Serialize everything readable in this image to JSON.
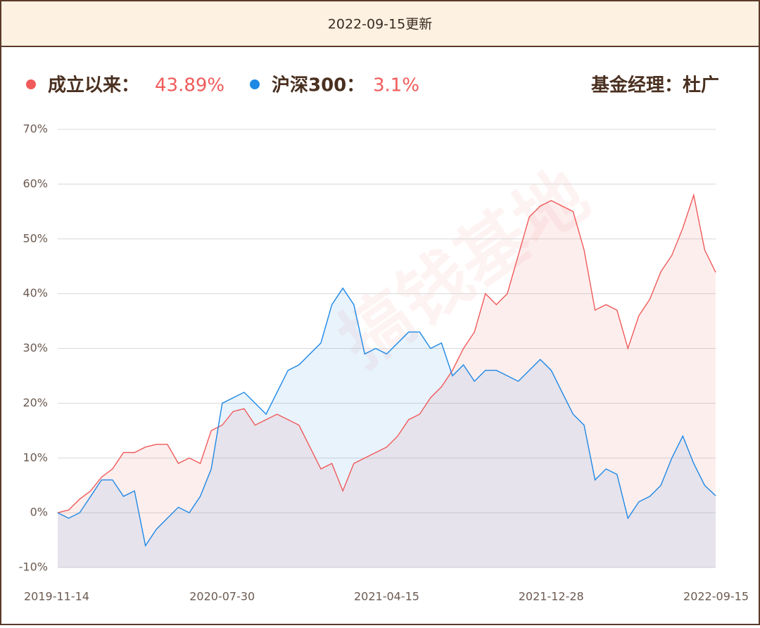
{
  "header": {
    "title": "2022-09-15更新"
  },
  "manager": "基金经理：杜广",
  "watermark": "搞钱基地",
  "chart_data": {
    "type": "line",
    "categories": [
      "2019-11-14",
      null,
      null,
      null,
      null,
      null,
      null,
      null,
      null,
      null,
      null,
      null,
      null,
      null,
      null,
      "2020-07-30",
      null,
      null,
      null,
      null,
      null,
      null,
      null,
      null,
      null,
      null,
      null,
      null,
      null,
      null,
      "2021-04-15",
      null,
      null,
      null,
      null,
      null,
      null,
      null,
      null,
      null,
      null,
      null,
      null,
      null,
      null,
      "2021-12-28",
      null,
      null,
      null,
      null,
      null,
      null,
      null,
      null,
      null,
      null,
      null,
      null,
      null,
      null,
      "2022-09-15"
    ],
    "series": [
      {
        "name": "成立以来：",
        "color": "#f05a5a",
        "total": {
          "value": 43.89,
          "label": "43.89%"
        },
        "values": [
          0,
          0.5,
          2.5,
          4,
          6.5,
          8,
          11,
          11,
          12,
          12.5,
          12.5,
          9,
          10,
          9,
          15,
          16,
          18.5,
          19,
          16,
          17,
          18,
          17,
          16,
          12,
          8,
          9,
          4,
          9,
          10,
          11,
          12,
          14,
          17,
          18,
          21,
          23,
          26,
          30,
          33,
          40,
          38,
          40,
          47,
          54,
          56,
          57,
          56,
          55,
          48,
          37,
          38,
          37,
          30,
          36,
          39,
          44,
          47,
          52,
          58,
          48,
          43.89
        ]
      },
      {
        "name": "沪深300：",
        "color": "#1e88e5",
        "total": {
          "value": 3.1,
          "label": "3.1%"
        },
        "values": [
          0,
          -1,
          0,
          3,
          6,
          6,
          3,
          4,
          -6,
          -3,
          -1,
          1,
          0,
          3,
          8,
          20,
          21,
          22,
          20,
          18,
          22,
          26,
          27,
          29,
          31,
          38,
          41,
          38,
          29,
          30,
          29,
          31,
          33,
          33,
          30,
          31,
          25,
          27,
          24,
          26,
          26,
          25,
          24,
          26,
          28,
          26,
          22,
          18,
          16,
          6,
          8,
          7,
          -1,
          2,
          3,
          5,
          10,
          14,
          9,
          5,
          3.1
        ]
      }
    ],
    "ylim": [
      -10,
      70
    ],
    "yticks": [
      {
        "value": -10,
        "label": "-10%"
      },
      {
        "value": 0,
        "label": "0%"
      },
      {
        "value": 10,
        "label": "10%"
      },
      {
        "value": 20,
        "label": "20%"
      },
      {
        "value": 30,
        "label": "30%"
      },
      {
        "value": 40,
        "label": "40%"
      },
      {
        "value": 50,
        "label": "50%"
      },
      {
        "value": 60,
        "label": "60%"
      },
      {
        "value": 70,
        "label": "70%"
      }
    ],
    "grid": true
  }
}
